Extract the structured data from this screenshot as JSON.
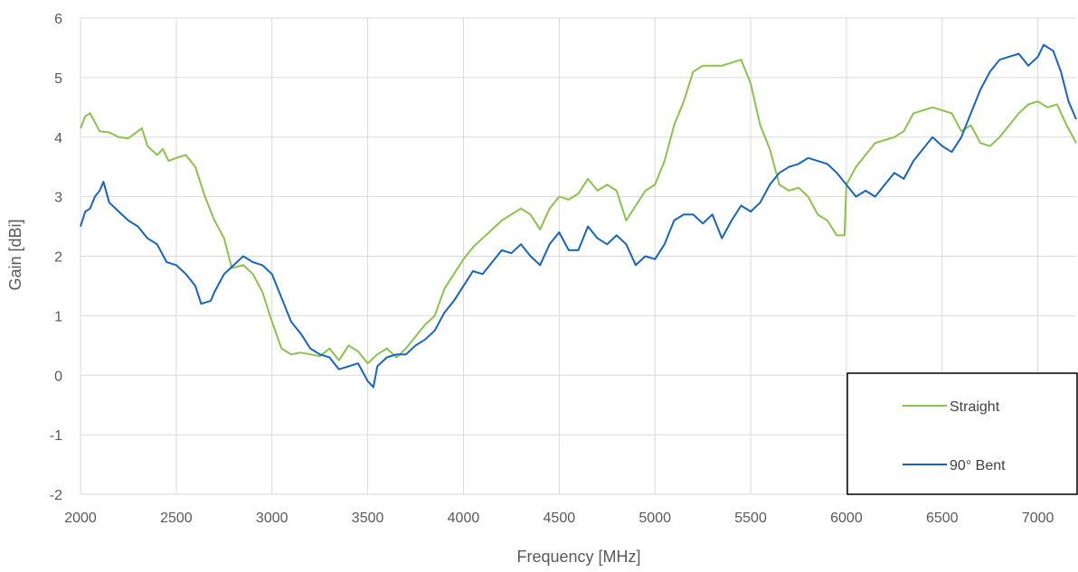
{
  "chart_data": {
    "type": "line",
    "title": "",
    "xlabel": "Frequency [MHz]",
    "ylabel": "Gain [dBi]",
    "xlim": [
      2000,
      7200
    ],
    "ylim": [
      -2,
      6
    ],
    "x_ticks": [
      "2000",
      "2500",
      "3000",
      "3500",
      "4000",
      "4500",
      "5000",
      "5500",
      "6000",
      "6500",
      "7000"
    ],
    "y_ticks": [
      "-2",
      "-1",
      "0",
      "1",
      "2",
      "3",
      "4",
      "5",
      "6"
    ],
    "grid": true,
    "legend_position": "bottom-right",
    "series": [
      {
        "name": "Straight",
        "color": "#8bc34a",
        "points": [
          [
            2000,
            4.15
          ],
          [
            2025,
            4.35
          ],
          [
            2050,
            4.4
          ],
          [
            2075,
            4.25
          ],
          [
            2100,
            4.1
          ],
          [
            2150,
            4.08
          ],
          [
            2200,
            4.0
          ],
          [
            2250,
            3.98
          ],
          [
            2300,
            4.1
          ],
          [
            2320,
            4.15
          ],
          [
            2350,
            3.85
          ],
          [
            2400,
            3.7
          ],
          [
            2430,
            3.8
          ],
          [
            2460,
            3.6
          ],
          [
            2500,
            3.65
          ],
          [
            2550,
            3.7
          ],
          [
            2600,
            3.5
          ],
          [
            2650,
            3.0
          ],
          [
            2700,
            2.6
          ],
          [
            2750,
            2.3
          ],
          [
            2790,
            1.8
          ],
          [
            2850,
            1.85
          ],
          [
            2900,
            1.7
          ],
          [
            2950,
            1.4
          ],
          [
            3000,
            0.9
          ],
          [
            3050,
            0.45
          ],
          [
            3100,
            0.35
          ],
          [
            3150,
            0.38
          ],
          [
            3200,
            0.35
          ],
          [
            3250,
            0.32
          ],
          [
            3300,
            0.45
          ],
          [
            3350,
            0.25
          ],
          [
            3400,
            0.5
          ],
          [
            3450,
            0.4
          ],
          [
            3500,
            0.2
          ],
          [
            3550,
            0.35
          ],
          [
            3600,
            0.45
          ],
          [
            3650,
            0.3
          ],
          [
            3700,
            0.45
          ],
          [
            3750,
            0.65
          ],
          [
            3800,
            0.85
          ],
          [
            3850,
            1.0
          ],
          [
            3900,
            1.45
          ],
          [
            3950,
            1.7
          ],
          [
            4000,
            1.95
          ],
          [
            4050,
            2.15
          ],
          [
            4100,
            2.3
          ],
          [
            4150,
            2.45
          ],
          [
            4200,
            2.6
          ],
          [
            4250,
            2.7
          ],
          [
            4300,
            2.8
          ],
          [
            4350,
            2.7
          ],
          [
            4400,
            2.45
          ],
          [
            4450,
            2.8
          ],
          [
            4500,
            3.0
          ],
          [
            4550,
            2.95
          ],
          [
            4600,
            3.05
          ],
          [
            4650,
            3.3
          ],
          [
            4700,
            3.1
          ],
          [
            4750,
            3.2
          ],
          [
            4800,
            3.1
          ],
          [
            4850,
            2.6
          ],
          [
            4900,
            2.85
          ],
          [
            4950,
            3.1
          ],
          [
            5000,
            3.2
          ],
          [
            5050,
            3.6
          ],
          [
            5100,
            4.2
          ],
          [
            5150,
            4.6
          ],
          [
            5200,
            5.1
          ],
          [
            5250,
            5.2
          ],
          [
            5300,
            5.2
          ],
          [
            5350,
            5.2
          ],
          [
            5400,
            5.25
          ],
          [
            5450,
            5.3
          ],
          [
            5500,
            4.9
          ],
          [
            5550,
            4.2
          ],
          [
            5600,
            3.8
          ],
          [
            5650,
            3.2
          ],
          [
            5700,
            3.1
          ],
          [
            5750,
            3.15
          ],
          [
            5800,
            3.0
          ],
          [
            5850,
            2.7
          ],
          [
            5900,
            2.6
          ],
          [
            5950,
            2.35
          ],
          [
            5990,
            2.35
          ],
          [
            6000,
            3.2
          ],
          [
            6050,
            3.5
          ],
          [
            6100,
            3.7
          ],
          [
            6150,
            3.9
          ],
          [
            6200,
            3.95
          ],
          [
            6250,
            4.0
          ],
          [
            6300,
            4.1
          ],
          [
            6350,
            4.4
          ],
          [
            6400,
            4.45
          ],
          [
            6450,
            4.5
          ],
          [
            6500,
            4.45
          ],
          [
            6550,
            4.4
          ],
          [
            6600,
            4.1
          ],
          [
            6650,
            4.2
          ],
          [
            6700,
            3.9
          ],
          [
            6750,
            3.85
          ],
          [
            6800,
            4.0
          ],
          [
            6850,
            4.2
          ],
          [
            6900,
            4.4
          ],
          [
            6950,
            4.55
          ],
          [
            7000,
            4.6
          ],
          [
            7050,
            4.5
          ],
          [
            7100,
            4.55
          ],
          [
            7150,
            4.2
          ],
          [
            7200,
            3.9
          ]
        ]
      },
      {
        "name": "90° Bent",
        "color": "#1565c0",
        "points": [
          [
            2000,
            2.5
          ],
          [
            2025,
            2.75
          ],
          [
            2050,
            2.8
          ],
          [
            2075,
            3.0
          ],
          [
            2100,
            3.1
          ],
          [
            2120,
            3.25
          ],
          [
            2150,
            2.9
          ],
          [
            2200,
            2.75
          ],
          [
            2250,
            2.6
          ],
          [
            2300,
            2.5
          ],
          [
            2350,
            2.3
          ],
          [
            2400,
            2.2
          ],
          [
            2450,
            1.9
          ],
          [
            2500,
            1.85
          ],
          [
            2550,
            1.7
          ],
          [
            2600,
            1.5
          ],
          [
            2630,
            1.2
          ],
          [
            2680,
            1.25
          ],
          [
            2700,
            1.4
          ],
          [
            2750,
            1.7
          ],
          [
            2800,
            1.85
          ],
          [
            2850,
            2.0
          ],
          [
            2900,
            1.9
          ],
          [
            2950,
            1.85
          ],
          [
            3000,
            1.7
          ],
          [
            3050,
            1.3
          ],
          [
            3100,
            0.9
          ],
          [
            3150,
            0.7
          ],
          [
            3200,
            0.45
          ],
          [
            3250,
            0.35
          ],
          [
            3300,
            0.3
          ],
          [
            3350,
            0.1
          ],
          [
            3400,
            0.15
          ],
          [
            3450,
            0.2
          ],
          [
            3500,
            -0.1
          ],
          [
            3530,
            -0.2
          ],
          [
            3550,
            0.15
          ],
          [
            3600,
            0.3
          ],
          [
            3650,
            0.35
          ],
          [
            3700,
            0.35
          ],
          [
            3750,
            0.5
          ],
          [
            3800,
            0.6
          ],
          [
            3850,
            0.75
          ],
          [
            3900,
            1.05
          ],
          [
            3950,
            1.25
          ],
          [
            4000,
            1.5
          ],
          [
            4050,
            1.75
          ],
          [
            4100,
            1.7
          ],
          [
            4150,
            1.9
          ],
          [
            4200,
            2.1
          ],
          [
            4250,
            2.05
          ],
          [
            4300,
            2.2
          ],
          [
            4350,
            2.0
          ],
          [
            4400,
            1.85
          ],
          [
            4450,
            2.2
          ],
          [
            4500,
            2.4
          ],
          [
            4550,
            2.1
          ],
          [
            4600,
            2.1
          ],
          [
            4650,
            2.5
          ],
          [
            4700,
            2.3
          ],
          [
            4750,
            2.2
          ],
          [
            4800,
            2.35
          ],
          [
            4850,
            2.2
          ],
          [
            4900,
            1.85
          ],
          [
            4950,
            2.0
          ],
          [
            5000,
            1.95
          ],
          [
            5050,
            2.2
          ],
          [
            5100,
            2.6
          ],
          [
            5150,
            2.7
          ],
          [
            5200,
            2.7
          ],
          [
            5250,
            2.55
          ],
          [
            5300,
            2.7
          ],
          [
            5350,
            2.3
          ],
          [
            5400,
            2.6
          ],
          [
            5450,
            2.85
          ],
          [
            5500,
            2.75
          ],
          [
            5550,
            2.9
          ],
          [
            5600,
            3.2
          ],
          [
            5650,
            3.4
          ],
          [
            5700,
            3.5
          ],
          [
            5750,
            3.55
          ],
          [
            5800,
            3.65
          ],
          [
            5850,
            3.6
          ],
          [
            5900,
            3.55
          ],
          [
            5950,
            3.4
          ],
          [
            6000,
            3.2
          ],
          [
            6050,
            3.0
          ],
          [
            6100,
            3.1
          ],
          [
            6150,
            3.0
          ],
          [
            6200,
            3.2
          ],
          [
            6250,
            3.4
          ],
          [
            6300,
            3.3
          ],
          [
            6350,
            3.6
          ],
          [
            6400,
            3.8
          ],
          [
            6450,
            4.0
          ],
          [
            6500,
            3.85
          ],
          [
            6550,
            3.75
          ],
          [
            6600,
            4.0
          ],
          [
            6650,
            4.4
          ],
          [
            6700,
            4.8
          ],
          [
            6750,
            5.1
          ],
          [
            6800,
            5.3
          ],
          [
            6850,
            5.35
          ],
          [
            6900,
            5.4
          ],
          [
            6950,
            5.2
          ],
          [
            7000,
            5.35
          ],
          [
            7030,
            5.55
          ],
          [
            7080,
            5.45
          ],
          [
            7120,
            5.1
          ],
          [
            7160,
            4.6
          ],
          [
            7200,
            4.3
          ]
        ]
      }
    ]
  }
}
